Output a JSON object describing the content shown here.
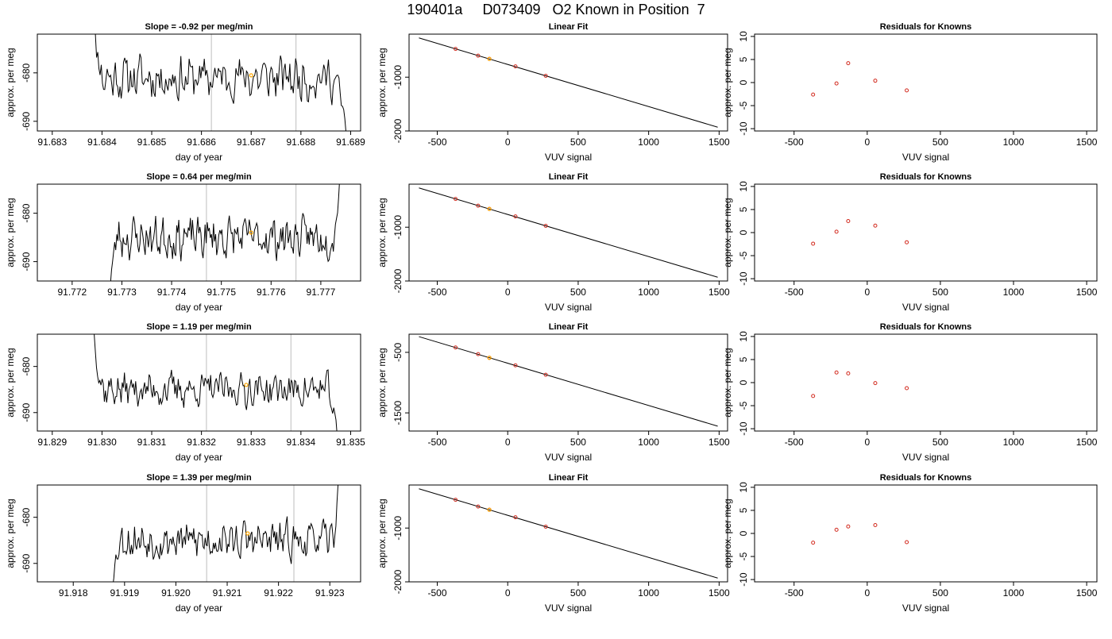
{
  "figure": {
    "title": "190401a     D073409   O2 Known in Position  7"
  },
  "colors": {
    "trace": "#000000",
    "vertical_marker": "#c8c8c8",
    "highlight_point": "#ffa500",
    "known_point": "#d22a1e",
    "fit_line": "#000000"
  },
  "chart_data": [
    {
      "type": "line",
      "row": 1,
      "panel": "timeseries",
      "title": "Slope =  -0.92  per meg/min",
      "xlabel": "day of year",
      "ylabel": "approx. per meg",
      "xlim": [
        91.6827,
        91.6892
      ],
      "ylim": [
        -692,
        -672
      ],
      "xticks": [
        91.683,
        91.684,
        91.685,
        91.686,
        91.687,
        91.688,
        91.689
      ],
      "xtick_labels": [
        "91.683",
        "91.684",
        "91.685",
        "91.686",
        "91.687",
        "91.688",
        "91.689"
      ],
      "yticks": [
        -680,
        -690
      ],
      "ytick_labels": [
        "-680",
        "-690"
      ],
      "vlines": [
        91.6862,
        91.6879
      ],
      "highlight": {
        "x": 91.687,
        "y": -680.5
      },
      "seed": 11,
      "center": -681,
      "amp": 3.4,
      "trace_start": 91.68375,
      "trace_end": 91.68893,
      "ramp_in_from": -660,
      "ramp_out_to": -694,
      "edge_frac": 0.06
    },
    {
      "type": "scatter",
      "row": 1,
      "panel": "fit",
      "title": "Linear Fit",
      "xlabel": "VUV signal",
      "ylabel": "approx. per meg",
      "xlim": [
        -700,
        1560
      ],
      "ylim": [
        -2000,
        -200
      ],
      "xticks": [
        -500,
        0,
        500,
        1000,
        1500
      ],
      "xtick_labels": [
        "-500",
        "0",
        "500",
        "1000",
        "1500"
      ],
      "yticks": [
        -1000,
        -2000
      ],
      "ytick_labels": [
        "-1000",
        "-2000"
      ],
      "line": {
        "x": [
          -630,
          1490
        ],
        "y": [
          -270,
          -1930
        ]
      },
      "points": {
        "x": [
          -370,
          -210,
          -130,
          55,
          270
        ],
        "y": [
          -475,
          -600,
          -660,
          -800,
          -975
        ]
      },
      "highlight": {
        "x": -130,
        "y": -660
      }
    },
    {
      "type": "scatter",
      "row": 1,
      "panel": "residuals",
      "title": "Residuals for Knowns",
      "xlabel": "VUV signal",
      "ylabel": "approx. per meg",
      "xlim": [
        -770,
        1570
      ],
      "ylim": [
        -10.5,
        10.5
      ],
      "xticks": [
        -500,
        0,
        500,
        1000,
        1500
      ],
      "xtick_labels": [
        "-500",
        "0",
        "500",
        "1000",
        "1500"
      ],
      "yticks": [
        -10,
        -5,
        0,
        5,
        10
      ],
      "ytick_labels": [
        "-10",
        "-5",
        "0",
        "5",
        "10"
      ],
      "points": {
        "x": [
          -370,
          -210,
          -130,
          55,
          270
        ],
        "y": [
          -2.6,
          -0.2,
          4.2,
          0.4,
          -1.7
        ]
      }
    },
    {
      "type": "line",
      "row": 2,
      "panel": "timeseries",
      "title": "Slope =  0.64  per meg/min",
      "xlabel": "day of year",
      "ylabel": "approx. per meg",
      "xlim": [
        91.7713,
        91.7778
      ],
      "ylim": [
        -694,
        -674
      ],
      "xticks": [
        91.772,
        91.773,
        91.774,
        91.775,
        91.776,
        91.777
      ],
      "xtick_labels": [
        "91.772",
        "91.773",
        "91.774",
        "91.775",
        "91.776",
        "91.777"
      ],
      "yticks": [
        -680,
        -690
      ],
      "ytick_labels": [
        "-680",
        "-690"
      ],
      "vlines": [
        91.7747,
        91.7765
      ],
      "highlight": {
        "x": 91.7756,
        "y": -684
      },
      "seed": 23,
      "center": -685,
      "amp": 3.2,
      "trace_start": 91.77275,
      "trace_end": 91.7774,
      "ramp_in_from": -697,
      "ramp_out_to": -670,
      "edge_frac": 0.04
    },
    {
      "type": "scatter",
      "row": 2,
      "panel": "fit",
      "title": "Linear Fit",
      "xlabel": "VUV signal",
      "ylabel": "approx. per meg",
      "xlim": [
        -700,
        1560
      ],
      "ylim": [
        -2000,
        -200
      ],
      "xticks": [
        -500,
        0,
        500,
        1000,
        1500
      ],
      "xtick_labels": [
        "-500",
        "0",
        "500",
        "1000",
        "1500"
      ],
      "yticks": [
        -1000,
        -2000
      ],
      "ytick_labels": [
        "-1000",
        "-2000"
      ],
      "line": {
        "x": [
          -630,
          1490
        ],
        "y": [
          -270,
          -1930
        ]
      },
      "points": {
        "x": [
          -370,
          -210,
          -130,
          55,
          270
        ],
        "y": [
          -475,
          -600,
          -660,
          -800,
          -975
        ]
      },
      "highlight": {
        "x": -130,
        "y": -660
      }
    },
    {
      "type": "scatter",
      "row": 2,
      "panel": "residuals",
      "title": "Residuals for Knowns",
      "xlabel": "VUV signal",
      "ylabel": "approx. per meg",
      "xlim": [
        -770,
        1570
      ],
      "ylim": [
        -10.5,
        10.5
      ],
      "xticks": [
        -500,
        0,
        500,
        1000,
        1500
      ],
      "xtick_labels": [
        "-500",
        "0",
        "500",
        "1000",
        "1500"
      ],
      "yticks": [
        -10,
        -5,
        0,
        5,
        10
      ],
      "ytick_labels": [
        "-10",
        "-5",
        "0",
        "5",
        "10"
      ],
      "points": {
        "x": [
          -370,
          -210,
          -130,
          55,
          270
        ],
        "y": [
          -2.4,
          0.2,
          2.5,
          1.5,
          -2.1
        ]
      }
    },
    {
      "type": "line",
      "row": 3,
      "panel": "timeseries",
      "title": "Slope =  1.19  per meg/min",
      "xlabel": "day of year",
      "ylabel": "approx. per meg",
      "xlim": [
        91.8287,
        91.8352
      ],
      "ylim": [
        -694,
        -673
      ],
      "xticks": [
        91.829,
        91.83,
        91.831,
        91.832,
        91.833,
        91.834,
        91.835
      ],
      "xtick_labels": [
        "91.829",
        "91.830",
        "91.831",
        "91.832",
        "91.833",
        "91.834",
        "91.835"
      ],
      "yticks": [
        -680,
        -690
      ],
      "ytick_labels": [
        "-680",
        "-690"
      ],
      "vlines": [
        91.8321,
        91.8338
      ],
      "highlight": {
        "x": 91.8329,
        "y": -684
      },
      "seed": 37,
      "center": -685,
      "amp": 2.8,
      "trace_start": 91.8298,
      "trace_end": 91.83475,
      "ramp_in_from": -667,
      "ramp_out_to": -697,
      "edge_frac": 0.05
    },
    {
      "type": "scatter",
      "row": 3,
      "panel": "fit",
      "title": "Linear Fit",
      "xlabel": "VUV signal",
      "ylabel": "approx. per meg",
      "xlim": [
        -700,
        1560
      ],
      "ylim": [
        -1800,
        -200
      ],
      "xticks": [
        -500,
        0,
        500,
        1000,
        1500
      ],
      "xtick_labels": [
        "-500",
        "0",
        "500",
        "1000",
        "1500"
      ],
      "yticks": [
        -500,
        -1500
      ],
      "ytick_labels": [
        "-500",
        "-1500"
      ],
      "line": {
        "x": [
          -630,
          1490
        ],
        "y": [
          -240,
          -1720
        ]
      },
      "points": {
        "x": [
          -370,
          -210,
          -130,
          55,
          270
        ],
        "y": [
          -420,
          -530,
          -590,
          -715,
          -870
        ]
      },
      "highlight": {
        "x": -130,
        "y": -590
      }
    },
    {
      "type": "scatter",
      "row": 3,
      "panel": "residuals",
      "title": "Residuals for Knowns",
      "xlabel": "VUV signal",
      "ylabel": "approx. per meg",
      "xlim": [
        -770,
        1570
      ],
      "ylim": [
        -10.5,
        10.5
      ],
      "xticks": [
        -500,
        0,
        500,
        1000,
        1500
      ],
      "xtick_labels": [
        "-500",
        "0",
        "500",
        "1000",
        "1500"
      ],
      "yticks": [
        -10,
        -5,
        0,
        5,
        10
      ],
      "ytick_labels": [
        "-10",
        "-5",
        "0",
        "5",
        "10"
      ],
      "points": {
        "x": [
          -370,
          -210,
          -130,
          55,
          270
        ],
        "y": [
          -2.9,
          2.2,
          2.0,
          -0.1,
          -1.2
        ]
      }
    },
    {
      "type": "line",
      "row": 4,
      "panel": "timeseries",
      "title": "Slope =  1.39  per meg/min",
      "xlabel": "day of year",
      "ylabel": "approx. per meg",
      "xlim": [
        91.9173,
        91.9236
      ],
      "ylim": [
        -694,
        -673
      ],
      "xticks": [
        91.918,
        91.919,
        91.92,
        91.921,
        91.922,
        91.923
      ],
      "xtick_labels": [
        "91.918",
        "91.919",
        "91.920",
        "91.921",
        "91.922",
        "91.923"
      ],
      "yticks": [
        -680,
        -690
      ],
      "ytick_labels": [
        "-680",
        "-690"
      ],
      "vlines": [
        91.9206,
        91.9223
      ],
      "highlight": {
        "x": 91.9214,
        "y": -683.5
      },
      "seed": 53,
      "center": -685,
      "amp": 3.0,
      "trace_start": 91.91875,
      "trace_end": 91.9232,
      "ramp_in_from": -697,
      "ramp_out_to": -668,
      "edge_frac": 0.04
    },
    {
      "type": "scatter",
      "row": 4,
      "panel": "fit",
      "title": "Linear Fit",
      "xlabel": "VUV signal",
      "ylabel": "approx. per meg",
      "xlim": [
        -700,
        1560
      ],
      "ylim": [
        -2000,
        -200
      ],
      "xticks": [
        -500,
        0,
        500,
        1000,
        1500
      ],
      "xtick_labels": [
        "-500",
        "0",
        "500",
        "1000",
        "1500"
      ],
      "yticks": [
        -1000,
        -2000
      ],
      "ytick_labels": [
        "-1000",
        "-2000"
      ],
      "line": {
        "x": [
          -630,
          1490
        ],
        "y": [
          -270,
          -1930
        ]
      },
      "points": {
        "x": [
          -370,
          -210,
          -130,
          55,
          270
        ],
        "y": [
          -475,
          -600,
          -660,
          -800,
          -975
        ]
      },
      "highlight": {
        "x": -130,
        "y": -660
      }
    },
    {
      "type": "scatter",
      "row": 4,
      "panel": "residuals",
      "title": "Residuals for Knowns",
      "xlabel": "VUV signal",
      "ylabel": "approx. per meg",
      "xlim": [
        -770,
        1570
      ],
      "ylim": [
        -10.5,
        10.5
      ],
      "xticks": [
        -500,
        0,
        500,
        1000,
        1500
      ],
      "xtick_labels": [
        "-500",
        "0",
        "500",
        "1000",
        "1500"
      ],
      "yticks": [
        -10,
        -5,
        0,
        5,
        10
      ],
      "ytick_labels": [
        "-10",
        "-5",
        "0",
        "5",
        "10"
      ],
      "points": {
        "x": [
          -370,
          -210,
          -130,
          55,
          270
        ],
        "y": [
          -2.0,
          0.8,
          1.5,
          1.8,
          -1.9
        ]
      }
    }
  ]
}
